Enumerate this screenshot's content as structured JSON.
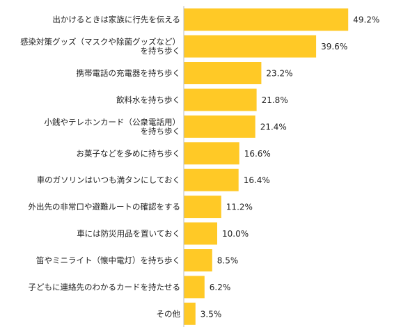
{
  "chart_data": {
    "type": "bar",
    "orientation": "horizontal",
    "bar_color": "#FFC926",
    "axis_color": "#BBBBBB",
    "value_suffix": "%",
    "xlim": [
      0,
      50
    ],
    "grid": false,
    "categories": [
      "出かけるときは家族に行先を伝える",
      "感染対策グッズ（マスクや除菌グッズなど）\nを持ち歩く",
      "携帯電話の充電器を持ち歩く",
      "飲料水を持ち歩く",
      "小銭やテレホンカード（公衆電話用）\nを持ち歩く",
      "お菓子などを多めに持ち歩く",
      "車のガソリンはいつも満タンにしておく",
      "外出先の非常口や避難ルートの確認をする",
      "車には防災用品を置いておく",
      "笛やミニライト（懐中電灯）を持ち歩く",
      "子どもに連絡先のわかるカードを持たせる",
      "その他"
    ],
    "values": [
      49.2,
      39.6,
      23.2,
      21.8,
      21.4,
      16.6,
      16.4,
      11.2,
      10.0,
      8.5,
      6.2,
      3.5
    ]
  }
}
